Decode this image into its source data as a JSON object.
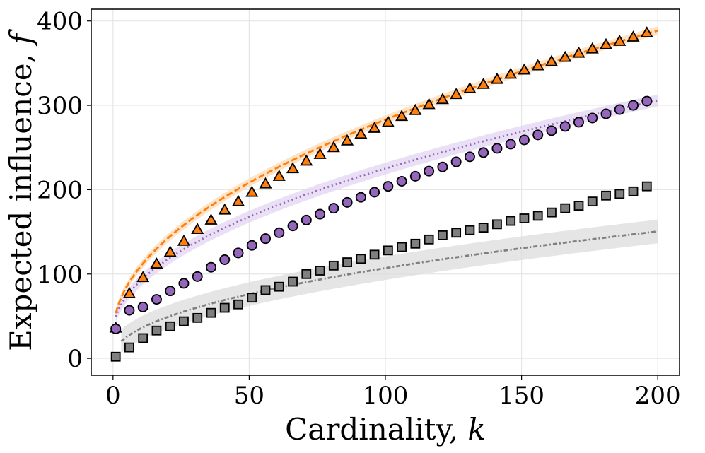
{
  "chart_data": {
    "type": "scatter",
    "title": "",
    "xlabel": "Cardinality, ",
    "xlabel_var": "k",
    "ylabel": "Expected influence, ",
    "ylabel_var": "f",
    "xlim": [
      -8,
      208
    ],
    "ylim": [
      -20,
      414
    ],
    "xticks": [
      0,
      50,
      100,
      150,
      200
    ],
    "yticks": [
      0,
      100,
      200,
      300,
      400
    ],
    "grid": true,
    "legend": "none",
    "series": [
      {
        "name": "triangle-series",
        "marker": "triangle",
        "color": "#ff7f0e",
        "band_color": "#ffd9b3",
        "band_width": 5,
        "fit_a": 28,
        "fit_b": 25.5,
        "fit_c": 0.5,
        "fit_start": 1,
        "x": [
          1,
          6,
          11,
          16,
          21,
          26,
          31,
          36,
          41,
          46,
          51,
          56,
          61,
          66,
          71,
          76,
          81,
          86,
          91,
          96,
          101,
          106,
          111,
          116,
          121,
          126,
          131,
          136,
          141,
          146,
          151,
          156,
          161,
          166,
          171,
          176,
          181,
          186,
          191,
          196
        ],
        "y": [
          36,
          77,
          96,
          112,
          126,
          139,
          153,
          164,
          176,
          186,
          197,
          207,
          216,
          225,
          234,
          242,
          250,
          258,
          266,
          273,
          280,
          287,
          294,
          301,
          307,
          313,
          320,
          325,
          331,
          337,
          342,
          347,
          352,
          357,
          362,
          367,
          372,
          376,
          381,
          386
        ]
      },
      {
        "name": "circle-series",
        "marker": "circle",
        "color": "#9467bd",
        "band_color": "#e3d6f1",
        "band_width": 7,
        "fit_a": 30,
        "fit_b": 19.5,
        "fit_c": 0.5,
        "fit_start": 1,
        "x": [
          1,
          6,
          11,
          16,
          21,
          26,
          31,
          36,
          41,
          46,
          51,
          56,
          61,
          66,
          71,
          76,
          81,
          86,
          91,
          96,
          101,
          106,
          111,
          116,
          121,
          126,
          131,
          136,
          141,
          146,
          151,
          156,
          161,
          166,
          171,
          176,
          181,
          186,
          191,
          196
        ],
        "y": [
          35,
          57,
          61,
          70,
          80,
          89,
          97,
          108,
          117,
          125,
          134,
          142,
          149,
          157,
          164,
          171,
          178,
          185,
          191,
          197,
          204,
          210,
          216,
          222,
          227,
          233,
          239,
          244,
          249,
          254,
          259,
          265,
          270,
          275,
          280,
          285,
          290,
          295,
          300,
          305
        ]
      },
      {
        "name": "square-series",
        "marker": "square",
        "color": "#7f7f7f",
        "band_color": "#dcdcdc",
        "band_width": 14,
        "fit_a": 2,
        "fit_b": 10.5,
        "fit_c": 0.5,
        "fit_start": 3,
        "x": [
          1,
          6,
          11,
          16,
          21,
          26,
          31,
          36,
          41,
          46,
          51,
          56,
          61,
          66,
          71,
          76,
          81,
          86,
          91,
          96,
          101,
          106,
          111,
          116,
          121,
          126,
          131,
          136,
          141,
          146,
          151,
          156,
          161,
          166,
          171,
          176,
          181,
          186,
          191,
          196
        ],
        "y": [
          2,
          13,
          24,
          33,
          38,
          44,
          48,
          54,
          60,
          64,
          72,
          81,
          85,
          91,
          100,
          104,
          110,
          114,
          118,
          123,
          128,
          132,
          136,
          141,
          146,
          149,
          152,
          155,
          159,
          163,
          166,
          169,
          173,
          178,
          181,
          186,
          193,
          195,
          198,
          204
        ]
      }
    ]
  }
}
